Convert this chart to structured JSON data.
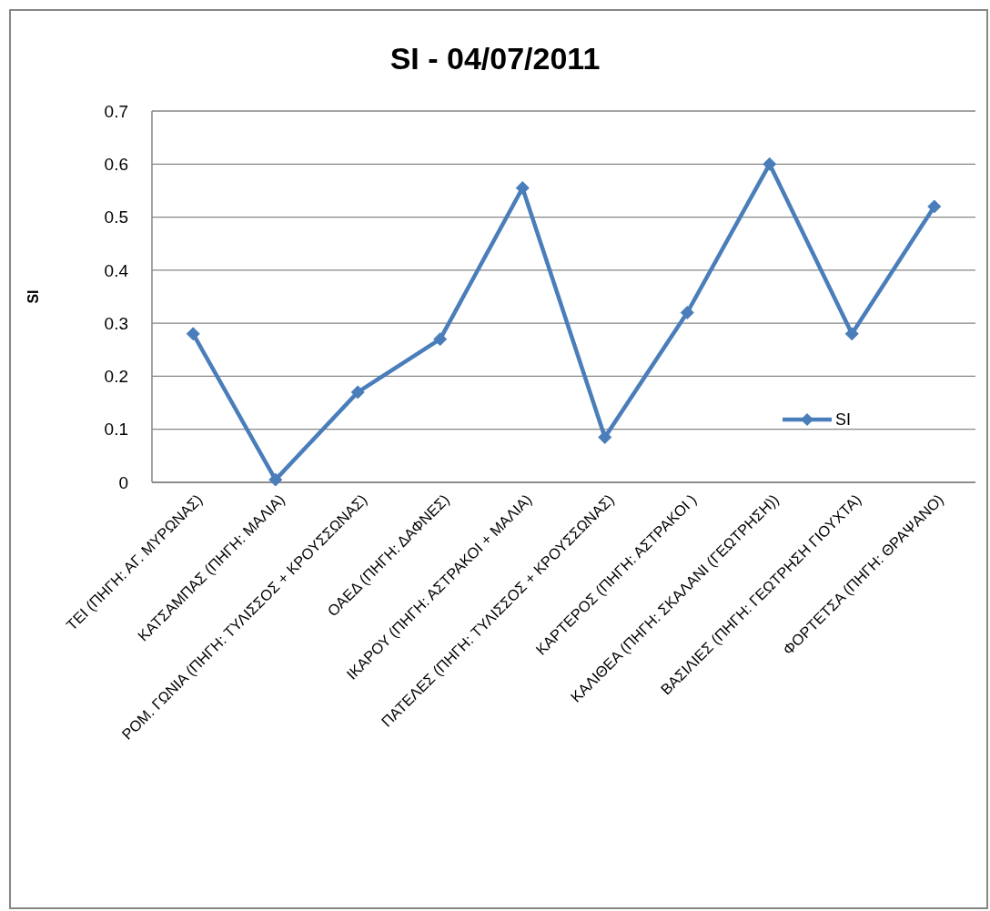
{
  "chart_data": {
    "type": "line",
    "title": "SI - 04/07/2011",
    "ylabel": "SI",
    "categories": [
      "ΤΕΙ (ΠΗΓΗ: ΑΓ. ΜΥΡΩΝΑΣ)",
      "ΚΑΤΣΑΜΠΑΣ (ΠΗΓΗ: ΜΑΛΙΑ)",
      "ΡΟΜ. ΓΩΝΙΑ (ΠΗΓΗ: ΤΥΛΙΣΣΟΣ + ΚΡΟΥΣΣΩΝΑΣ)",
      "ΟΑΕΔ (ΠΗΓΗ: ΔΑΦΝΕΣ)",
      "ΙΚΑΡΟΥ (ΠΗΓΗ: ΑΣΤΡΑΚΟΙ + ΜΑΛΙΑ)",
      "ΠΑΤΕΛΕΣ (ΠΗΓΗ: ΤΥΛΙΣΣΟΣ + ΚΡΟΥΣΣΩΝΑΣ)",
      "ΚΑΡΤΕΡΟΣ (ΠΗΓΗ: ΑΣΤΡΑΚΟΙ )",
      "ΚΑΛΙΘΕΑ (ΠΗΓΗ: ΣΚΑΛΑΝΙ (ΓΕΩΤΡΗΣΗ))",
      "ΒΑΣΙΛΙΕΣ (ΠΗΓΗ: ΓΕΩΤΡΗΣΗ ΓΙΟΥΧΤΑ)",
      "ΦΟΡΤΕΤΣΑ (ΠΗΓΗ: ΘΡΑΨΑΝΟ)"
    ],
    "series": [
      {
        "name": "SI",
        "color": "#4a7ebb",
        "values": [
          0.28,
          0.005,
          0.17,
          0.27,
          0.555,
          0.085,
          0.32,
          0.6,
          0.28,
          0.52
        ]
      }
    ],
    "ylim": [
      0,
      0.7
    ],
    "yticks": [
      0,
      0.1,
      0.2,
      0.3,
      0.4,
      0.5,
      0.6,
      0.7
    ],
    "grid": "y",
    "legend": "bottom right",
    "marker": "diamond",
    "line_style": "solid"
  }
}
